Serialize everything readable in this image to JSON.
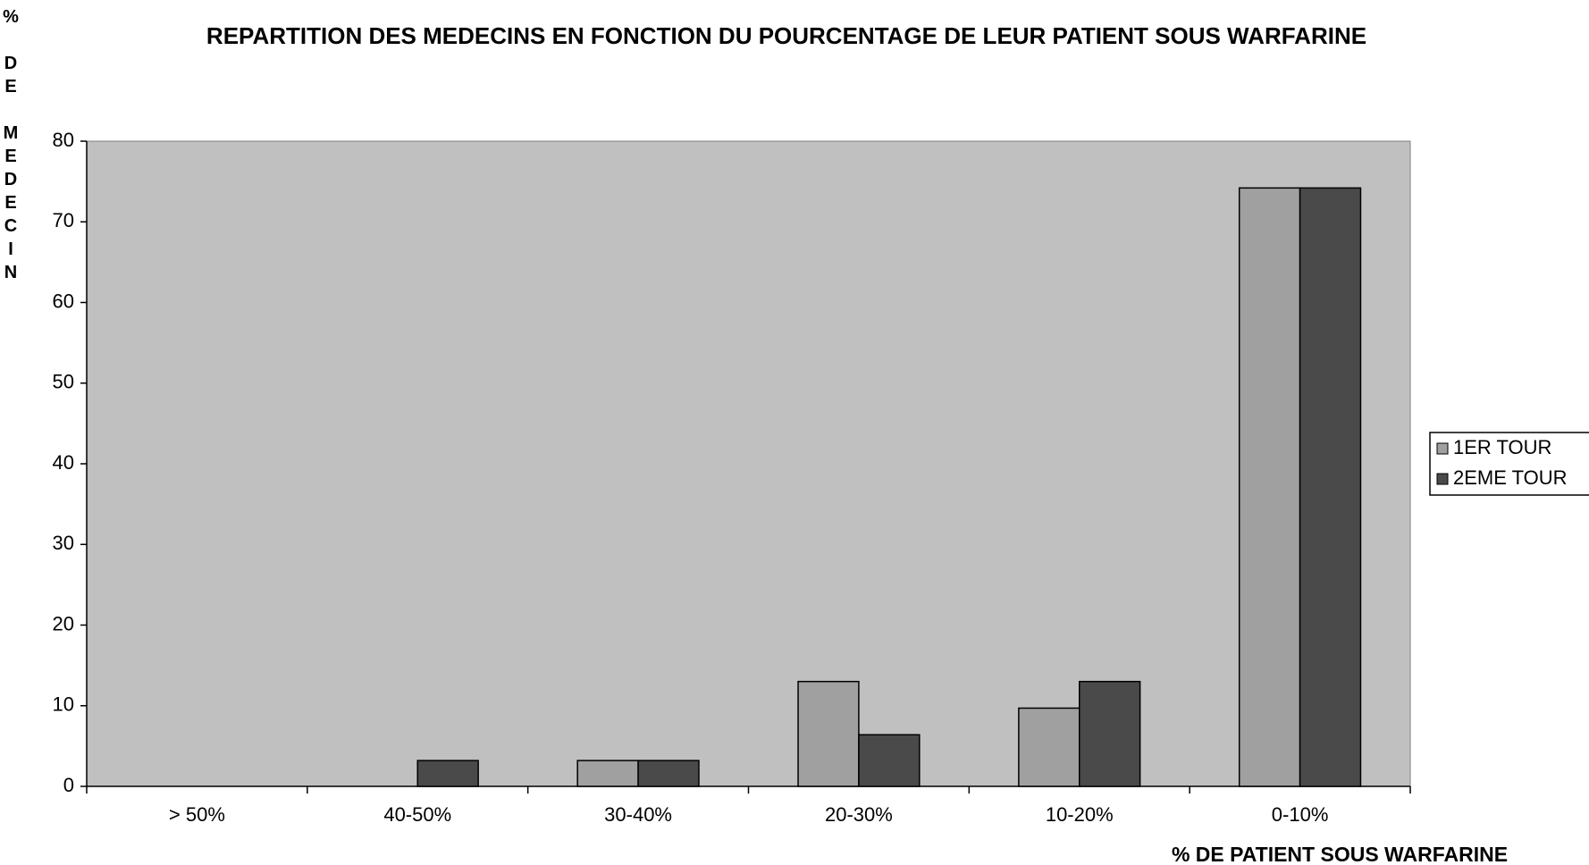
{
  "chart_data": {
    "type": "bar",
    "title": "REPARTITION DES MEDECINS EN FONCTION DU POURCENTAGE DE LEUR PATIENT SOUS WARFARINE",
    "y_label": "% DE MEDECIN",
    "x_label": "% DE PATIENT SOUS WARFARINE",
    "categories": [
      "> 50%",
      "40-50%",
      "30-40%",
      "20-30%",
      "10-20%",
      "0-10%"
    ],
    "series": [
      {
        "name": "1ER TOUR",
        "color": "#a0a0a0",
        "values": [
          0,
          0,
          3.2,
          13,
          9.7,
          74.2
        ]
      },
      {
        "name": "2EME TOUR",
        "color": "#4a4a4a",
        "values": [
          0,
          3.2,
          3.2,
          6.4,
          13,
          74.2
        ]
      }
    ],
    "ylim": [
      0,
      80
    ],
    "yticks": [
      0,
      10,
      20,
      30,
      40,
      50,
      60,
      70,
      80
    ],
    "grid": false,
    "legend": "right",
    "plot_background": "#c0c0c0"
  }
}
